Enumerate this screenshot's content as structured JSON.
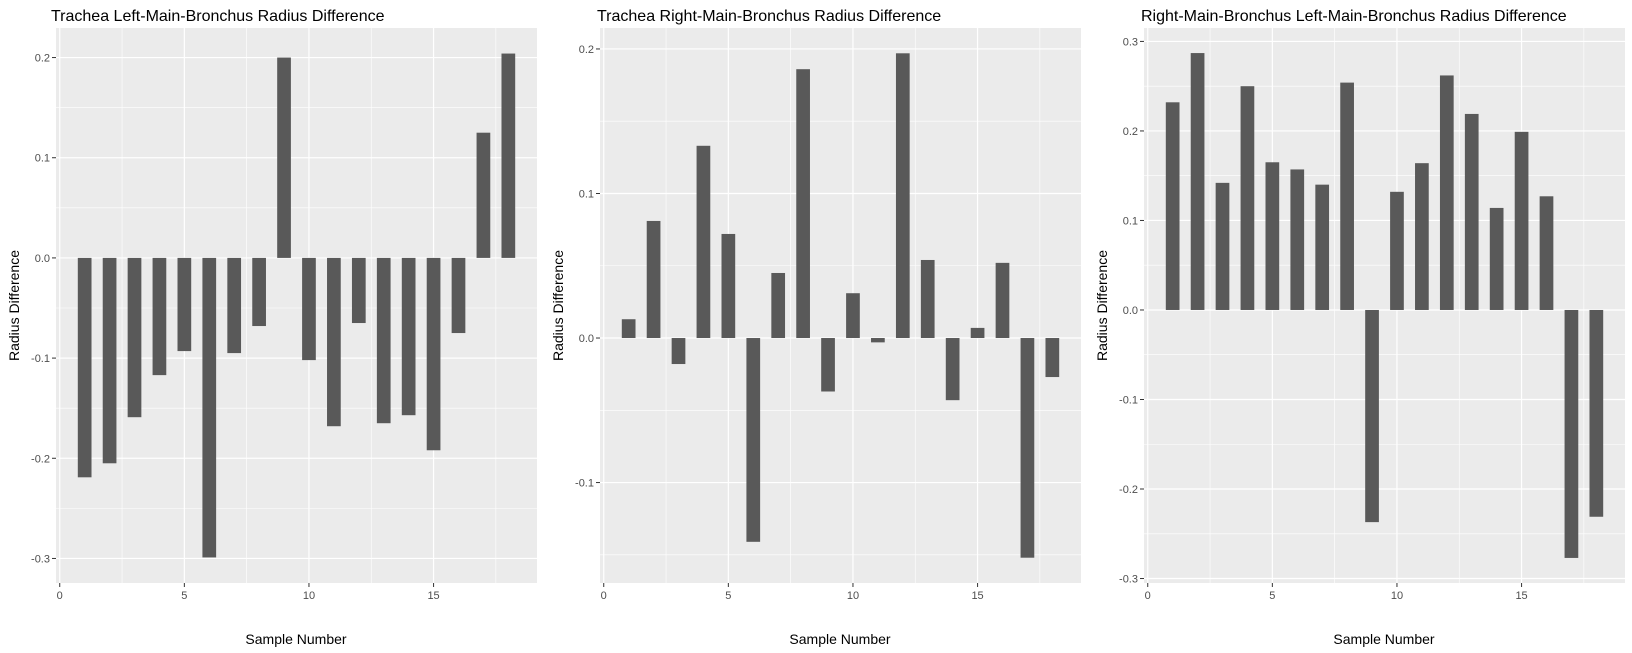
{
  "colors": {
    "panel_background": "#ebebeb",
    "grid_major": "#ffffff",
    "bar_fill": "#595959",
    "tick_text": "#4d4d4d",
    "tick_mark": "#333333"
  },
  "chart_data": [
    {
      "type": "bar",
      "title": "Trachea Left-Main-Bronchus Radius Difference",
      "xlabel": "Sample Number",
      "ylabel": "Radius Difference",
      "x": [
        1,
        2,
        3,
        4,
        5,
        6,
        7,
        8,
        9,
        10,
        11,
        12,
        13,
        14,
        15,
        16,
        17,
        18
      ],
      "values": [
        -0.219,
        -0.205,
        -0.159,
        -0.117,
        -0.093,
        -0.299,
        -0.095,
        -0.068,
        0.2,
        -0.102,
        -0.168,
        -0.065,
        -0.165,
        -0.157,
        -0.192,
        -0.075,
        0.125,
        0.204
      ],
      "xticks": [
        0,
        5,
        10,
        15
      ],
      "yticks": [
        -0.3,
        -0.2,
        -0.1,
        0.0,
        0.1,
        0.2
      ],
      "ytick_labels": [
        "-0.3",
        "-0.2",
        "-0.1",
        "0.0",
        "0.1",
        "0.2"
      ],
      "xlim": [
        -0.15,
        19.15
      ],
      "ylim": [
        -0.3245,
        0.2295
      ],
      "grid": true
    },
    {
      "type": "bar",
      "title": "Trachea Right-Main-Bronchus Radius Difference",
      "xlabel": "Sample Number",
      "ylabel": "Radius Difference",
      "x": [
        1,
        2,
        3,
        4,
        5,
        6,
        7,
        8,
        9,
        10,
        11,
        12,
        13,
        14,
        15,
        16,
        17,
        18
      ],
      "values": [
        0.013,
        0.081,
        -0.018,
        0.133,
        0.072,
        -0.141,
        0.045,
        0.186,
        -0.037,
        0.031,
        -0.003,
        0.197,
        0.054,
        -0.043,
        0.007,
        0.052,
        -0.152,
        -0.027
      ],
      "xticks": [
        0,
        5,
        10,
        15
      ],
      "yticks": [
        -0.1,
        0.0,
        0.1,
        0.2
      ],
      "ytick_labels": [
        "-0.1",
        "0.0",
        "0.1",
        "0.2"
      ],
      "xlim": [
        -0.15,
        19.15
      ],
      "ylim": [
        -0.1695,
        0.2145
      ],
      "grid": true
    },
    {
      "type": "bar",
      "title": "Right-Main-Bronchus Left-Main-Bronchus Radius Difference",
      "xlabel": "Sample Number",
      "ylabel": "Radius Difference",
      "x": [
        1,
        2,
        3,
        4,
        5,
        6,
        7,
        8,
        9,
        10,
        11,
        12,
        13,
        14,
        15,
        16,
        17,
        18
      ],
      "values": [
        0.232,
        0.287,
        0.142,
        0.25,
        0.165,
        0.157,
        0.14,
        0.254,
        -0.237,
        0.132,
        0.164,
        0.262,
        0.219,
        0.114,
        0.199,
        0.127,
        -0.277,
        -0.231
      ],
      "xticks": [
        0,
        5,
        10,
        15
      ],
      "yticks": [
        -0.3,
        -0.2,
        -0.1,
        0.0,
        0.1,
        0.2,
        0.3
      ],
      "ytick_labels": [
        "-0.3",
        "-0.2",
        "-0.1",
        "0.0",
        "0.1",
        "0.2",
        "0.3"
      ],
      "xlim": [
        -0.15,
        19.15
      ],
      "ylim": [
        -0.305,
        0.315
      ],
      "grid": true
    }
  ]
}
